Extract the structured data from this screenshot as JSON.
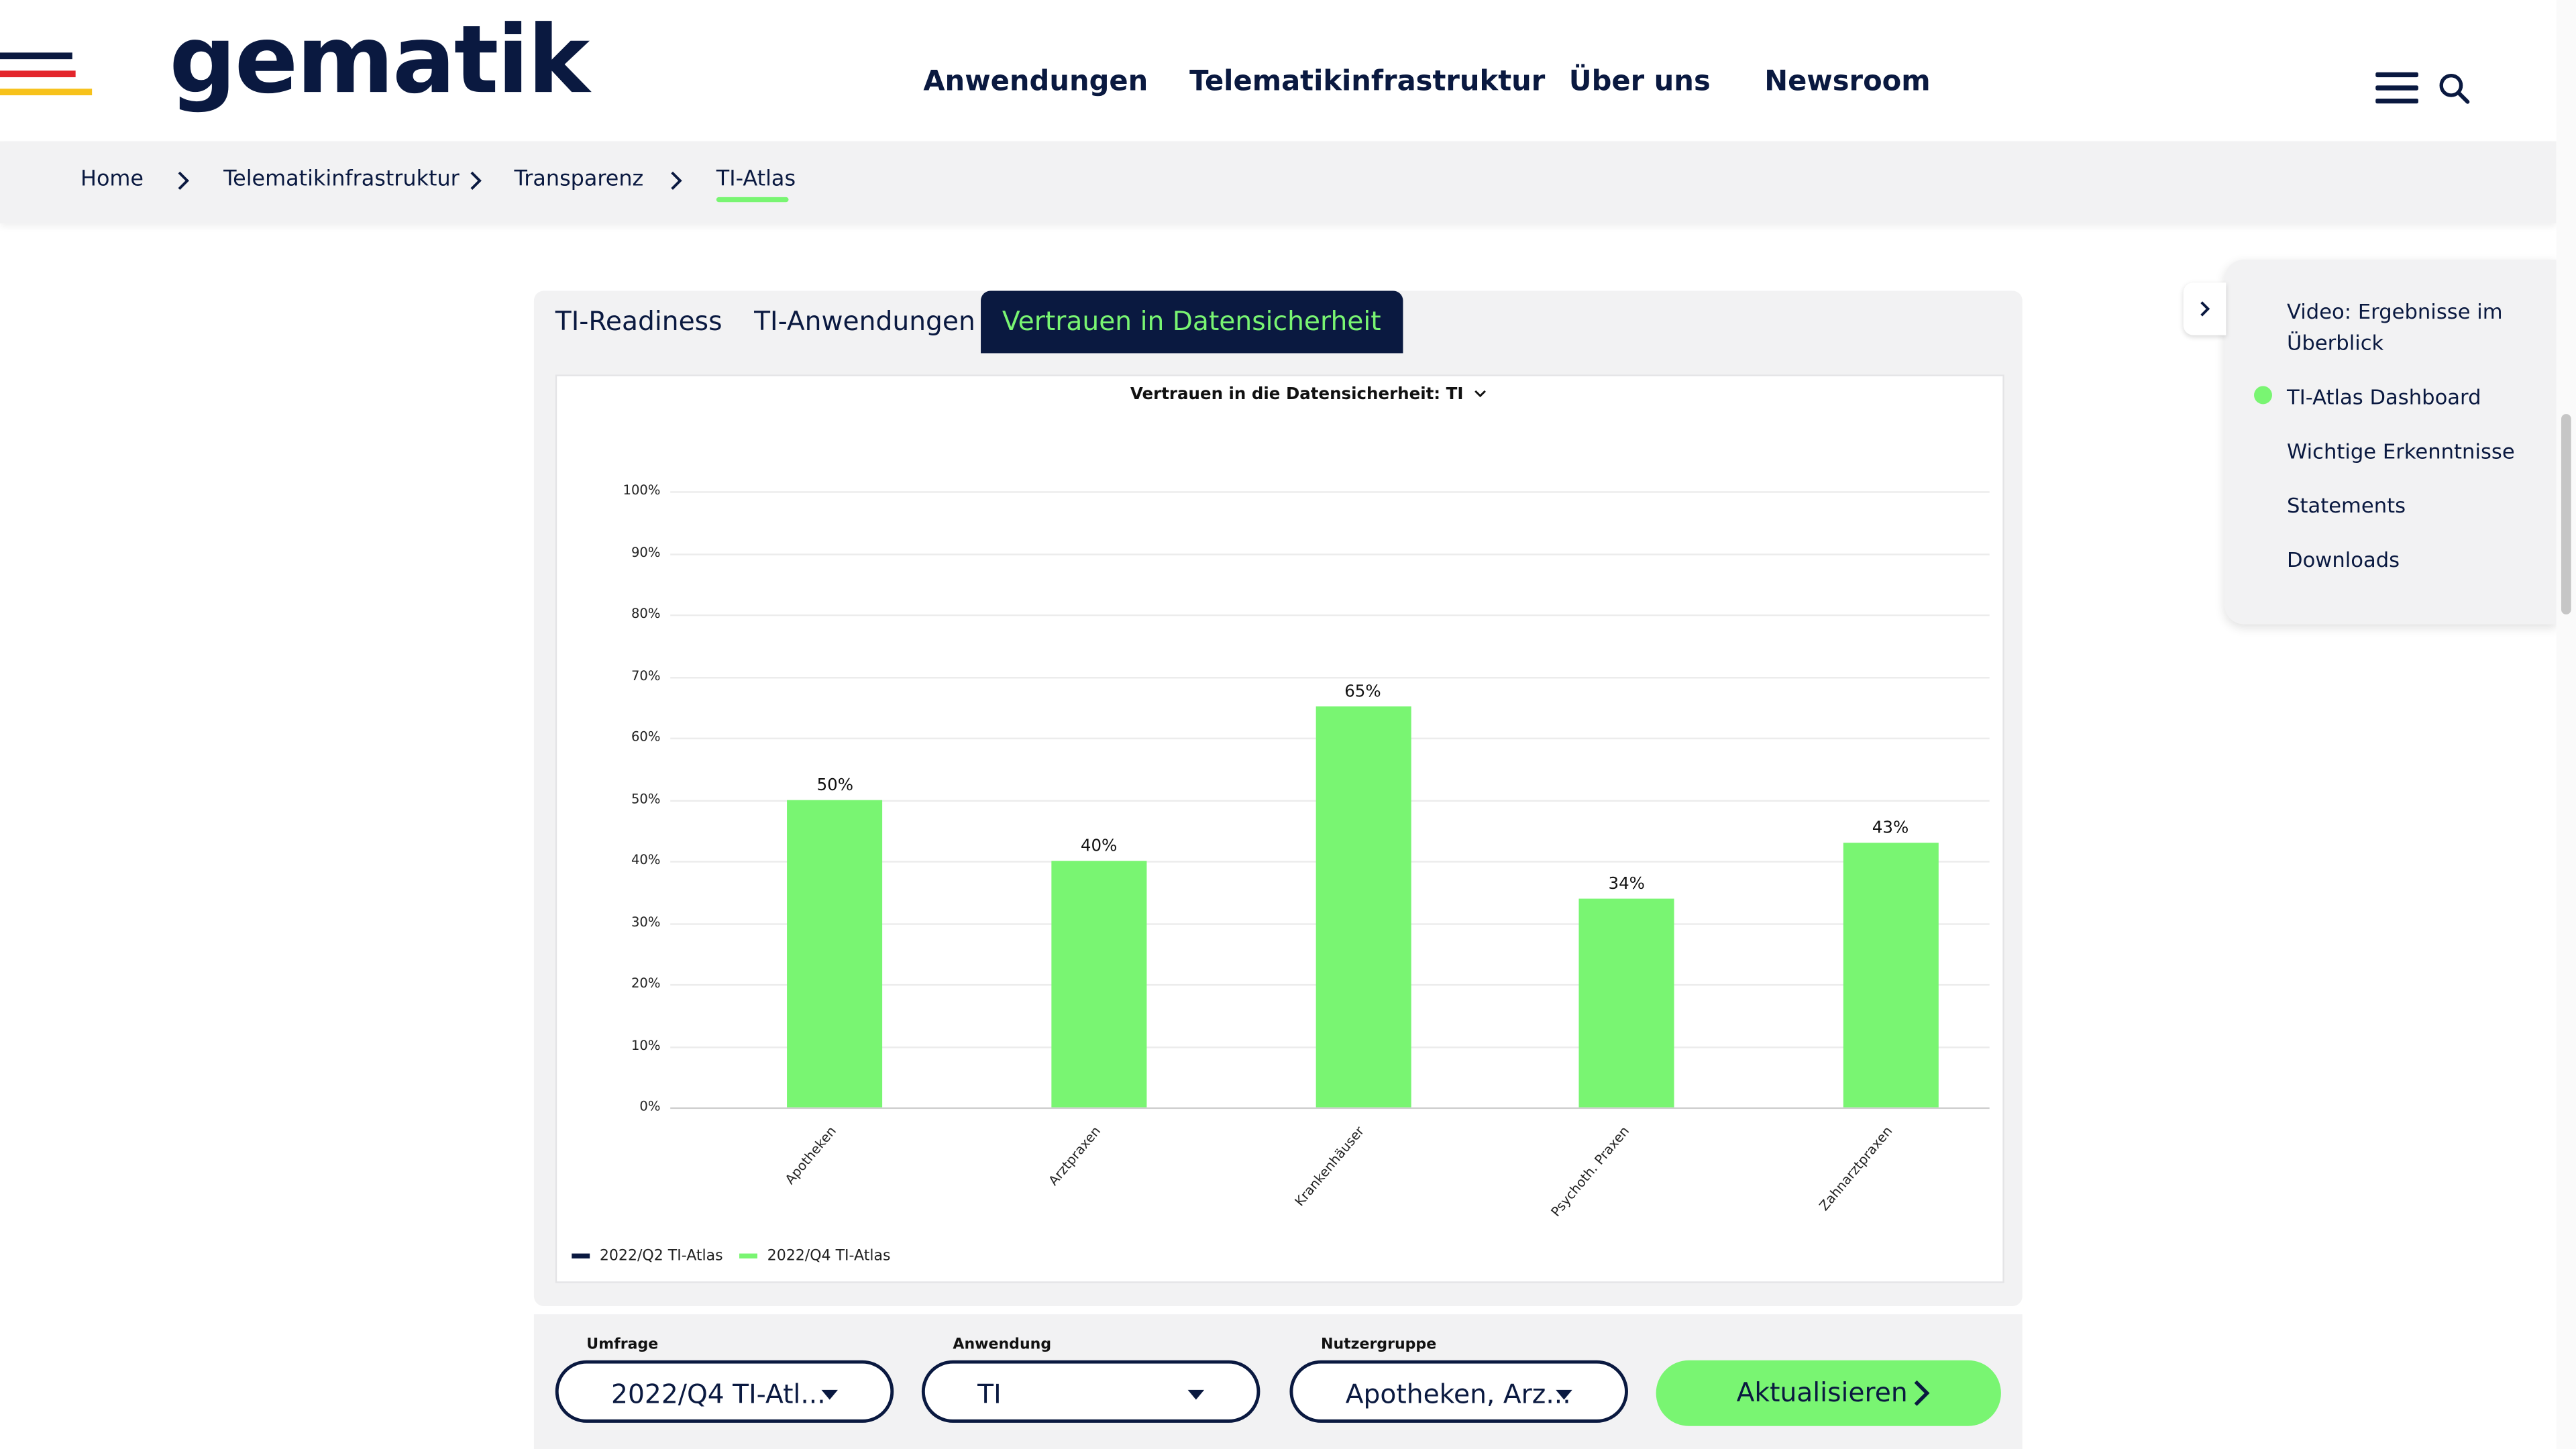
{
  "header": {
    "logo": "gematik",
    "nav": [
      "Anwendungen",
      "Telematikinfrastruktur",
      "Über uns",
      "Newsroom"
    ],
    "icons": [
      "menu-icon",
      "search-icon"
    ]
  },
  "breadcrumb": [
    "Home",
    "Telematikinfrastruktur",
    "Transparenz",
    "TI-Atlas"
  ],
  "tabs": [
    "TI-Readiness",
    "TI-Anwendungen",
    "Vertrauen in Datensicherheit"
  ],
  "chart_data": {
    "type": "bar",
    "title": "Vertrauen in die Datensicherheit: TI",
    "categories": [
      "Apotheken",
      "Arztpraxen",
      "Krankenhäuser",
      "Psychoth. Praxen",
      "Zahnarztpraxen"
    ],
    "series": [
      {
        "name": "2022/Q2 TI-Atlas",
        "color": "#0a1940",
        "values": [
          null,
          null,
          null,
          null,
          null
        ]
      },
      {
        "name": "2022/Q4 TI-Atlas",
        "color": "#79f572",
        "values": [
          50,
          40,
          65,
          34,
          43
        ]
      }
    ],
    "value_labels": [
      "50%",
      "40%",
      "65%",
      "34%",
      "43%"
    ],
    "y_ticks": [
      "0%",
      "10%",
      "20%",
      "30%",
      "40%",
      "50%",
      "60%",
      "70%",
      "80%",
      "90%",
      "100%"
    ],
    "ylim": [
      0,
      100
    ],
    "grid": true,
    "legend_position": "bottom-left"
  },
  "filters": {
    "survey": {
      "label": "Umfrage",
      "value": "2022/Q4 TI-Atl..."
    },
    "application": {
      "label": "Anwendung",
      "value": "TI"
    },
    "usergroup": {
      "label": "Nutzergruppe",
      "value": "Apotheken, Arz..."
    },
    "submit": "Aktualisieren"
  },
  "toc": {
    "items": [
      "Video: Ergebnisse im Überblick",
      "TI-Atlas Dashboard",
      "Wichtige Erkenntnisse",
      "Statements",
      "Downloads"
    ],
    "active_index": 1,
    "accent_color": "#79f572"
  }
}
